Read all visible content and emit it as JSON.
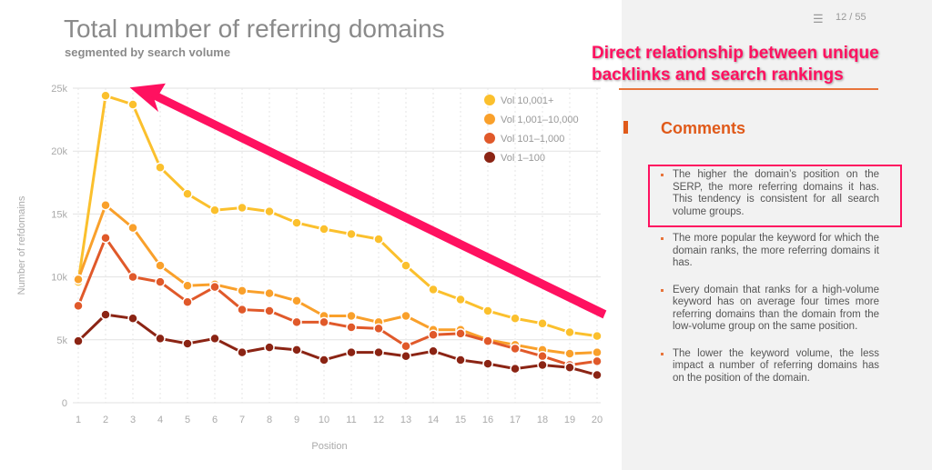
{
  "header": {
    "page": "12 / 55",
    "menu_icon": "hamburger-icon"
  },
  "annotation": "Direct relationship between unique backlinks and search rankings",
  "comments": {
    "heading": "Comments",
    "items": [
      "The higher the domain’s position on the SERP, the more referring domains it has. This tendency is consistent for all search volume groups.",
      "The more popular the keyword for which the domain ranks, the more referring domains it has.",
      "Every domain that ranks for a high-volume keyword has on average four times more referring domains than the domain from the low-volume group on the same position.",
      "The lower the keyword volume, the less impact a number of referring domains has on the position of the domain."
    ]
  },
  "chart_data": {
    "type": "line",
    "title": "Total number of referring domains",
    "subtitle": "segmented by search volume",
    "xlabel": "Position",
    "ylabel": "Number of refdomains",
    "x": [
      1,
      2,
      3,
      4,
      5,
      6,
      7,
      8,
      9,
      10,
      11,
      12,
      13,
      14,
      15,
      16,
      17,
      18,
      19,
      20
    ],
    "ylim": [
      0,
      25000
    ],
    "yticks": [
      0,
      5000,
      10000,
      15000,
      20000,
      25000
    ],
    "ytick_labels": [
      "0",
      "5k",
      "10k",
      "15k",
      "20k",
      "25k"
    ],
    "grid": true,
    "legend": "top-right",
    "series": [
      {
        "name": "Vol 10,001+",
        "color": "#fbc02d",
        "values": [
          9600,
          24400,
          23700,
          18700,
          16600,
          15300,
          15500,
          15200,
          14300,
          13800,
          13400,
          13000,
          10900,
          9000,
          8200,
          7300,
          6700,
          6300,
          5600,
          5300
        ]
      },
      {
        "name": "Vol 1,001–10,000",
        "color": "#f9a02b",
        "values": [
          9800,
          15700,
          13900,
          10900,
          9300,
          9400,
          8900,
          8700,
          8100,
          6900,
          6900,
          6400,
          6900,
          5800,
          5800,
          5000,
          4600,
          4200,
          3900,
          4000
        ]
      },
      {
        "name": "Vol 101–1,000",
        "color": "#e0592a",
        "values": [
          7700,
          13100,
          10000,
          9600,
          8000,
          9200,
          7400,
          7300,
          6400,
          6400,
          6000,
          5900,
          4500,
          5400,
          5500,
          4900,
          4300,
          3700,
          3000,
          3300
        ]
      },
      {
        "name": "Vol 1–100",
        "color": "#8b2414",
        "values": [
          4900,
          7000,
          6700,
          5100,
          4700,
          5100,
          4000,
          4400,
          4200,
          3400,
          4000,
          4000,
          3700,
          4100,
          3400,
          3100,
          2700,
          3000,
          2800,
          2200
        ]
      }
    ]
  }
}
